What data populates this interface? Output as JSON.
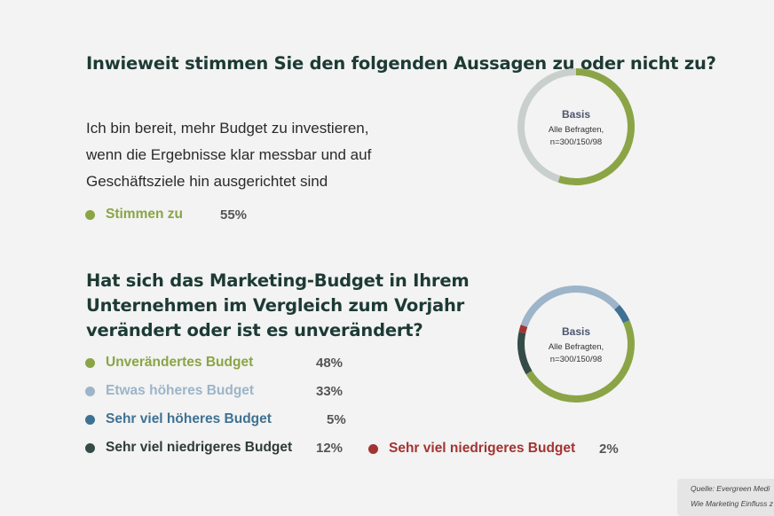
{
  "chart_data": [
    {
      "type": "pie",
      "title": "Inwieweit stimmen Sie den folgenden Aussagen zu oder nicht zu?",
      "statement": "Ich bin bereit, mehr Budget zu investieren, wenn die Ergebnisse klar messbar und auf Geschäftsziele hin ausgerichtet sind",
      "center": {
        "title": "Basis",
        "line1": "Alle Befragten,",
        "line2": "n=300/150/98"
      },
      "start_angle": 0,
      "slices": [
        {
          "label": "Stimmen zu",
          "value": 55,
          "value_label": "55%",
          "color": "#8ba446",
          "legend": true
        },
        {
          "label": "",
          "value": 45,
          "color": "#c9cfcc",
          "legend": false
        }
      ]
    },
    {
      "type": "pie",
      "title": "Hat sich das Marketing-Budget in Ihrem Unternehmen im Vergleich zum Vorjahr verändert oder ist es unverändert?",
      "center": {
        "title": "Basis",
        "line1": "Alle Befragten,",
        "line2": "n=300/150/98"
      },
      "start_angle": 66,
      "slices": [
        {
          "label": "Unverändertes Budget",
          "value": 48,
          "value_label": "48%",
          "color": "#8ba446"
        },
        {
          "label": "Sehr viel niedrigeres Budget",
          "value": 12,
          "value_label": "12%",
          "color": "#354b47"
        },
        {
          "label": "Sehr viel niedrigeres Budget",
          "value": 2,
          "value_label": "2%",
          "color": "#a33333"
        },
        {
          "label": "Etwas höheres Budget",
          "value": 33,
          "value_label": "33%",
          "color": "#9db4c9"
        },
        {
          "label": "Sehr viel höheres Budget",
          "value": 5,
          "value_label": "5%",
          "color": "#3f7193"
        }
      ]
    }
  ],
  "source": {
    "line1": "Quelle: Evergreen Medi",
    "line2": "Wie Marketing Einfluss z"
  }
}
